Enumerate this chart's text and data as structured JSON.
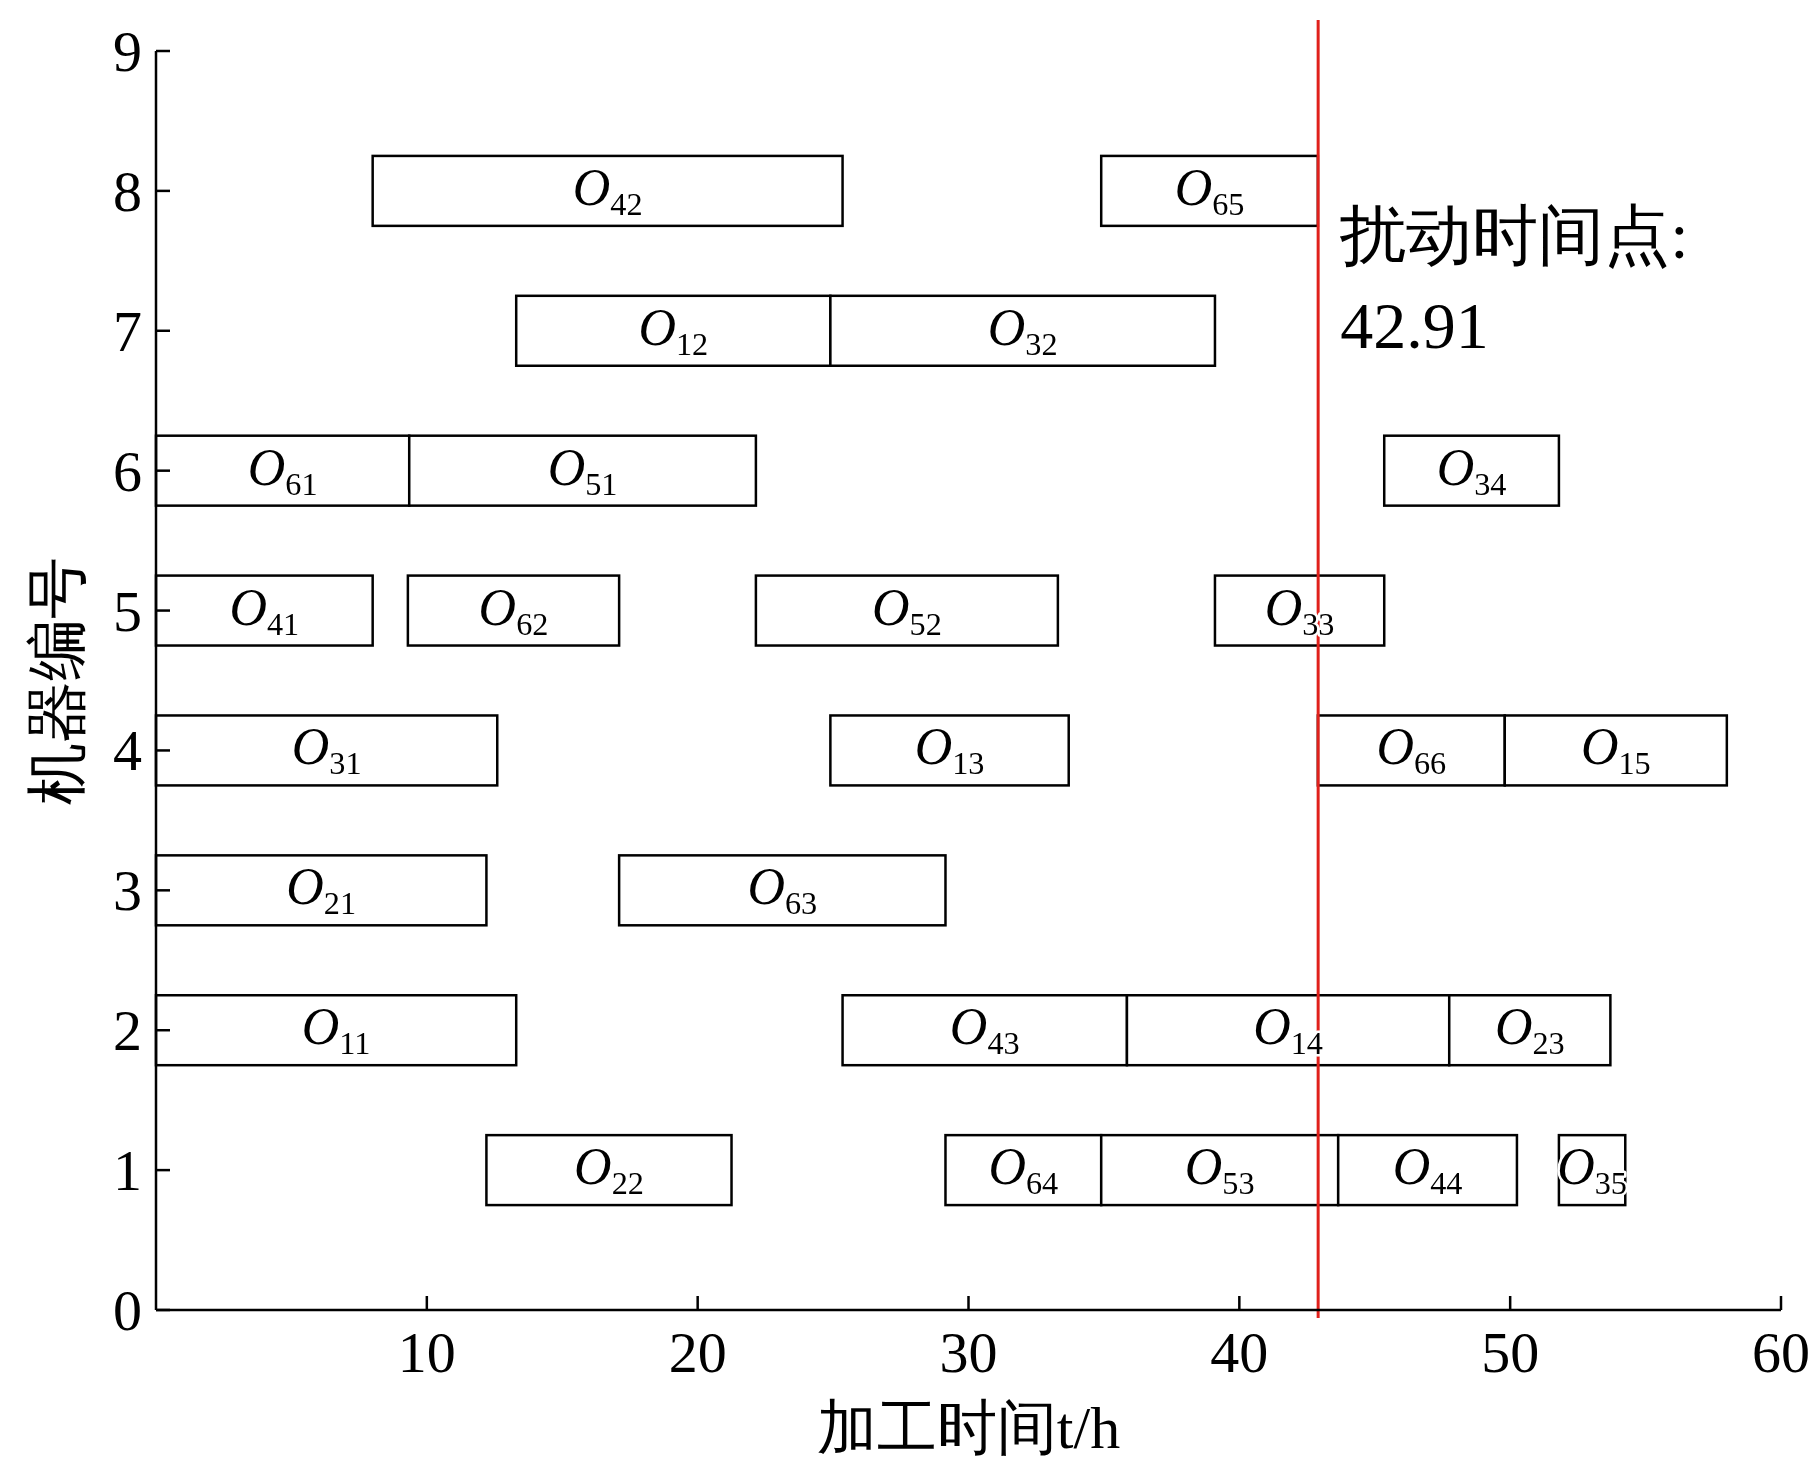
{
  "chart_data": {
    "type": "bar",
    "orientation": "horizontal",
    "xlabel": "加工时间t/h",
    "ylabel": "机器编号",
    "xlim": [
      0,
      60
    ],
    "xticks": [
      10,
      20,
      30,
      40,
      50,
      60
    ],
    "ylim": [
      0,
      9
    ],
    "yticks": [
      0,
      1,
      2,
      3,
      4,
      5,
      6,
      7,
      8,
      9
    ],
    "color": "#ffffff",
    "series": [
      {
        "name": "O$_{22}$",
        "x": [
          1
        ],
        "base": [
          12.2
        ],
        "values": [
          9.05
        ]
      },
      {
        "name": "O$_{64}$",
        "x": [
          1
        ],
        "base": [
          29.15
        ],
        "values": [
          5.75
        ]
      },
      {
        "name": "O$_{53}$",
        "x": [
          1
        ],
        "base": [
          34.9
        ],
        "values": [
          8.75
        ]
      },
      {
        "name": "O$_{44}$",
        "x": [
          1
        ],
        "base": [
          43.65
        ],
        "values": [
          6.6
        ]
      },
      {
        "name": "O$_{35}$",
        "x": [
          1
        ],
        "base": [
          51.8
        ],
        "values": [
          2.45
        ]
      },
      {
        "name": "O$_{11}$",
        "x": [
          2
        ],
        "base": [
          0
        ],
        "values": [
          13.3
        ]
      },
      {
        "name": "O$_{43}$",
        "x": [
          2
        ],
        "base": [
          25.35
        ],
        "values": [
          10.5
        ]
      },
      {
        "name": "O$_{14}$",
        "x": [
          2
        ],
        "base": [
          35.85
        ],
        "values": [
          11.9
        ]
      },
      {
        "name": "O$_{23}$",
        "x": [
          2
        ],
        "base": [
          47.75
        ],
        "values": [
          5.95
        ]
      },
      {
        "name": "O$_{21}$",
        "x": [
          3
        ],
        "base": [
          0
        ],
        "values": [
          12.2
        ]
      },
      {
        "name": "O$_{63}$",
        "x": [
          3
        ],
        "base": [
          17.1
        ],
        "values": [
          12.05
        ]
      },
      {
        "name": "O$_{31}$",
        "x": [
          4
        ],
        "base": [
          0
        ],
        "values": [
          12.6
        ]
      },
      {
        "name": "O$_{13}$",
        "x": [
          4
        ],
        "base": [
          24.9
        ],
        "values": [
          8.8
        ]
      },
      {
        "name": "O$_{66}$",
        "x": [
          4
        ],
        "base": [
          42.9
        ],
        "values": [
          6.9
        ]
      },
      {
        "name": "O$_{15}$",
        "x": [
          4
        ],
        "base": [
          49.8
        ],
        "values": [
          8.2
        ]
      },
      {
        "name": "O$_{41}$",
        "x": [
          5
        ],
        "base": [
          0
        ],
        "values": [
          8.0
        ]
      },
      {
        "name": "O$_{62}$",
        "x": [
          5
        ],
        "base": [
          9.3
        ],
        "values": [
          7.8
        ]
      },
      {
        "name": "O$_{52}$",
        "x": [
          5
        ],
        "base": [
          22.15
        ],
        "values": [
          11.15
        ]
      },
      {
        "name": "O$_{33}$",
        "x": [
          5
        ],
        "base": [
          39.1
        ],
        "values": [
          6.25
        ]
      },
      {
        "name": "O$_{61}$",
        "x": [
          6
        ],
        "base": [
          0
        ],
        "values": [
          9.35
        ]
      },
      {
        "name": "O$_{51}$",
        "x": [
          6
        ],
        "base": [
          9.35
        ],
        "values": [
          12.8
        ]
      },
      {
        "name": "O$_{34}$",
        "x": [
          6
        ],
        "base": [
          45.35
        ],
        "values": [
          6.45
        ]
      },
      {
        "name": "O$_{12}$",
        "x": [
          7
        ],
        "base": [
          13.3
        ],
        "values": [
          11.6
        ]
      },
      {
        "name": "O$_{32}$",
        "x": [
          7
        ],
        "base": [
          24.9
        ],
        "values": [
          14.2
        ]
      },
      {
        "name": "O$_{42}$",
        "x": [
          8
        ],
        "base": [
          8.0
        ],
        "values": [
          17.35
        ]
      },
      {
        "name": "O$_{65}$",
        "x": [
          8
        ],
        "base": [
          34.9
        ],
        "values": [
          8.0
        ]
      }
    ],
    "ref_lines": [
      {
        "axis": "x",
        "value": 42.91,
        "label": "扰动时间点:\n42.91",
        "color": "#e0201b"
      }
    ]
  }
}
